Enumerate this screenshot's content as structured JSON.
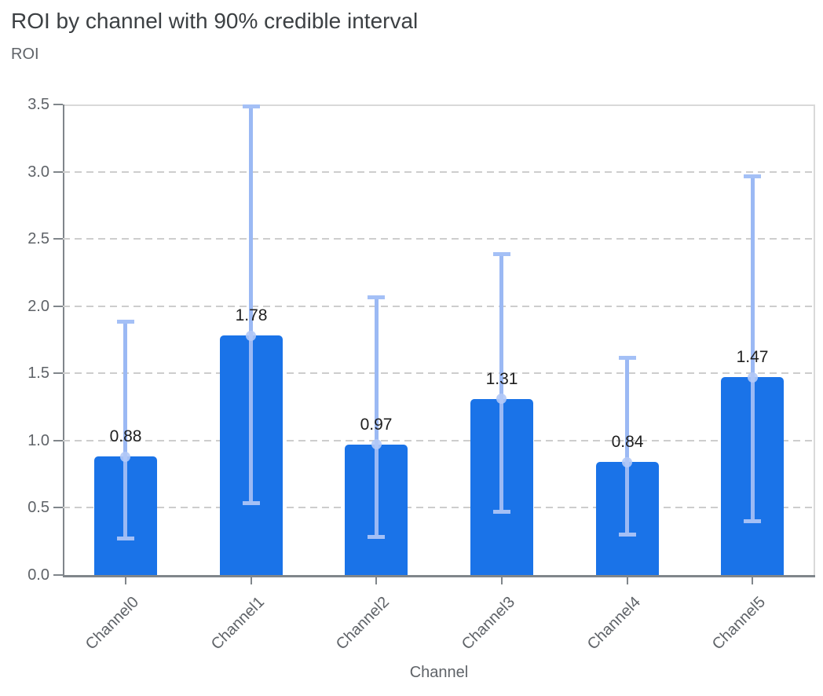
{
  "chart_data": {
    "type": "bar",
    "title": "ROI by channel with 90% credible interval",
    "ylabel": "ROI",
    "xlabel": "Channel",
    "categories": [
      "Channel0",
      "Channel1",
      "Channel2",
      "Channel3",
      "Channel4",
      "Channel5"
    ],
    "values": [
      0.88,
      1.78,
      0.97,
      1.31,
      0.84,
      1.47
    ],
    "bar_labels": [
      "0.88",
      "1.78",
      "0.97",
      "1.31",
      "0.84",
      "1.47"
    ],
    "credible_interval": {
      "level": "90%",
      "lower": [
        0.27,
        0.53,
        0.28,
        0.47,
        0.3,
        0.4
      ],
      "upper": [
        1.89,
        3.49,
        2.07,
        2.39,
        1.62,
        2.97
      ]
    },
    "ylim": [
      0,
      3.5
    ],
    "ytick_labels": [
      "0.0",
      "0.5",
      "1.0",
      "1.5",
      "2.0",
      "2.5",
      "3.0",
      "3.5"
    ],
    "grid": {
      "horizontal": true,
      "style": "dashed",
      "top_and_right_border": "solid"
    },
    "legend": "none",
    "colors": {
      "bar": "#1a73e8",
      "error_line": "#9bb9f4",
      "error_cap": "#a4c0f6",
      "error_dot": "#b3c9f7",
      "title_text": "#3c4043",
      "axis_text": "#5f6368",
      "value_label_text": "#1f1f1f",
      "gridline": "#cdcdcd",
      "axis_line": "#80868b",
      "plot_border": "#d9d9d9",
      "background": "#ffffff"
    }
  }
}
